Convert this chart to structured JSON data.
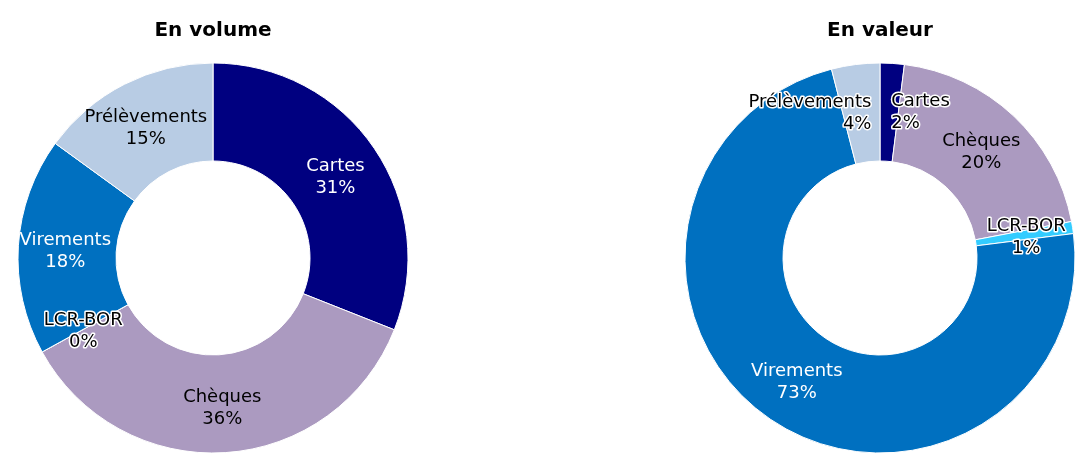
{
  "chart_data": [
    {
      "type": "donut",
      "title": "En volume",
      "categories": [
        "Cartes",
        "Chèques",
        "LCR-BOR",
        "Virements",
        "Prélèvements"
      ],
      "values": [
        31,
        36,
        0,
        18,
        15
      ],
      "colors": [
        "#000080",
        "#ab9ac0",
        "#33ccff",
        "#0070c0",
        "#b8cce4"
      ],
      "value_labels": [
        "31%",
        "36%",
        "0%",
        "18%",
        "15%"
      ]
    },
    {
      "type": "donut",
      "title": "En valeur",
      "categories": [
        "Cartes",
        "Chèques",
        "LCR-BOR",
        "Virements",
        "Prélèvements"
      ],
      "values": [
        2,
        20,
        1,
        73,
        4
      ],
      "colors": [
        "#000080",
        "#ab9ac0",
        "#33ccff",
        "#0070c0",
        "#b8cce4"
      ],
      "value_labels": [
        "2%",
        "20%",
        "1%",
        "73%",
        "4%"
      ]
    }
  ]
}
